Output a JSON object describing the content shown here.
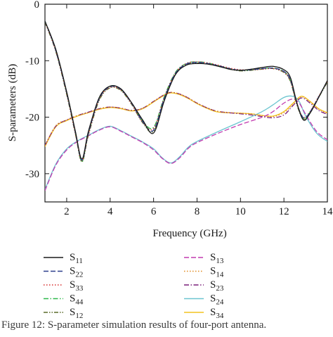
{
  "chart_data": {
    "type": "line",
    "title": "",
    "xlabel": "Frequency (GHz)",
    "ylabel": "S-parameters (dB)",
    "xlim": [
      1,
      14
    ],
    "ylim": [
      -35,
      0
    ],
    "xticks": [
      2,
      4,
      6,
      8,
      10,
      12,
      14
    ],
    "yticks": [
      0,
      -10,
      -20,
      -30
    ],
    "grid": false,
    "legend_placement": "bottom",
    "series": [
      {
        "name": "S11",
        "base": "S",
        "sub": "11",
        "color": "#1a1a1a",
        "dash": "solid",
        "x": [
          1,
          1.5,
          2,
          2.4,
          2.7,
          3,
          3.5,
          4,
          4.5,
          5,
          5.5,
          6,
          6.5,
          7,
          7.5,
          8,
          8.5,
          9,
          9.5,
          10,
          10.5,
          11,
          11.5,
          12,
          12.3,
          12.6,
          12.9,
          13.2,
          13.6,
          14
        ],
        "y": [
          -3,
          -8,
          -15.5,
          -22.5,
          -27.4,
          -22.5,
          -16.5,
          -14.5,
          -15,
          -17.5,
          -20.5,
          -22.8,
          -17,
          -12.5,
          -10.8,
          -10.5,
          -10.6,
          -11,
          -11.5,
          -11.7,
          -11.5,
          -11.2,
          -11,
          -11.6,
          -13,
          -17.5,
          -20.5,
          -19.3,
          -16.5,
          -13.5
        ]
      },
      {
        "name": "S22",
        "base": "S",
        "sub": "22",
        "color": "#2c3e8c",
        "dash": "long",
        "x": [
          1,
          1.5,
          2,
          2.4,
          2.7,
          3,
          3.5,
          4,
          4.5,
          5,
          5.5,
          6,
          6.5,
          7,
          7.5,
          8,
          8.5,
          9,
          9.5,
          10,
          10.5,
          11,
          11.5,
          12,
          12.3,
          12.6,
          12.9,
          13.2,
          13.6,
          14
        ],
        "y": [
          -3,
          -8.2,
          -15.7,
          -22.7,
          -27.6,
          -22.8,
          -16.7,
          -14.6,
          -15.1,
          -17.6,
          -20.8,
          -22.3,
          -16.6,
          -12.3,
          -10.6,
          -10.3,
          -10.5,
          -10.9,
          -11.4,
          -11.7,
          -11.6,
          -11.4,
          -11.3,
          -11.9,
          -13.4,
          -17.6,
          -20.1,
          -19.1,
          -16.4,
          -13.6
        ]
      },
      {
        "name": "S33",
        "base": "S",
        "sub": "33",
        "color": "#d62b2b",
        "dash": "dot",
        "x": [
          1,
          1.5,
          2,
          2.4,
          2.7,
          3,
          3.5,
          4,
          4.5,
          5,
          5.5,
          6,
          6.5,
          7,
          7.5,
          8,
          8.5,
          9,
          9.5,
          10,
          10.5,
          11,
          11.5,
          12,
          12.3,
          12.6,
          12.9,
          13.2,
          13.6,
          14
        ],
        "y": [
          -3.1,
          -8.3,
          -15.8,
          -22.9,
          -27.7,
          -23,
          -16.8,
          -14.7,
          -15.2,
          -17.7,
          -20.9,
          -22,
          -16.4,
          -12.2,
          -10.5,
          -10.2,
          -10.4,
          -10.8,
          -11.3,
          -11.6,
          -11.6,
          -11.5,
          -11.4,
          -12,
          -13.6,
          -17.8,
          -20,
          -19,
          -16.3,
          -13.7
        ]
      },
      {
        "name": "S44",
        "base": "S",
        "sub": "44",
        "color": "#2db84a",
        "dash": "dashdot",
        "x": [
          1,
          1.5,
          2,
          2.4,
          2.7,
          3,
          3.5,
          4,
          4.5,
          5,
          5.5,
          6,
          6.5,
          7,
          7.5,
          8,
          8.5,
          9,
          9.5,
          10,
          10.5,
          11,
          11.5,
          12,
          12.3,
          12.6,
          12.9,
          13.2,
          13.6,
          14
        ],
        "y": [
          -3,
          -8.1,
          -15.6,
          -22.6,
          -27.8,
          -22.7,
          -16.6,
          -14.5,
          -15.1,
          -17.6,
          -20.7,
          -21.8,
          -16.3,
          -12.1,
          -10.5,
          -10.2,
          -10.4,
          -10.9,
          -11.4,
          -11.7,
          -11.6,
          -11.4,
          -11.3,
          -11.9,
          -13.5,
          -17.7,
          -20.2,
          -19.1,
          -16.4,
          -13.6
        ]
      },
      {
        "name": "S12",
        "base": "S",
        "sub": "12",
        "color": "#5c6b2a",
        "dash": "dashdotdot",
        "x": [
          1,
          1.5,
          2,
          2.4,
          2.7,
          3,
          3.5,
          4,
          4.5,
          5,
          5.5,
          6,
          6.5,
          7,
          7.5,
          8,
          8.5,
          9,
          9.5,
          10,
          10.5,
          11,
          11.5,
          12,
          12.3,
          12.6,
          12.9,
          13.2,
          13.6,
          14
        ],
        "y": [
          -3.2,
          -8.4,
          -16,
          -23,
          -27.9,
          -23.2,
          -17,
          -14.8,
          -15.3,
          -17.8,
          -21,
          -22.5,
          -16.8,
          -12.4,
          -10.7,
          -10.4,
          -10.6,
          -11,
          -11.5,
          -11.8,
          -11.7,
          -11.5,
          -11.4,
          -12.1,
          -13.7,
          -17.9,
          -20.3,
          -19.2,
          -16.5,
          -13.8
        ]
      },
      {
        "name": "S13",
        "base": "S",
        "sub": "13",
        "color": "#c23bb0",
        "dash": "long",
        "x": [
          1,
          1.5,
          2,
          2.5,
          3,
          3.5,
          4,
          4.5,
          5,
          5.5,
          6,
          6.4,
          6.8,
          7.2,
          7.6,
          8,
          9,
          10,
          11,
          11.5,
          12,
          12.4,
          12.7,
          13,
          13.5,
          14
        ],
        "y": [
          -33,
          -28.5,
          -25.8,
          -24.3,
          -23.3,
          -22.3,
          -21.7,
          -22.5,
          -23.5,
          -24.5,
          -25.8,
          -27.3,
          -28.2,
          -27.2,
          -25.5,
          -24.5,
          -22.8,
          -21.3,
          -20,
          -19,
          -17.5,
          -16.8,
          -17.5,
          -19.5,
          -22.5,
          -24
        ]
      },
      {
        "name": "S14",
        "base": "S",
        "sub": "14",
        "color": "#e08a1e",
        "dash": "dot",
        "x": [
          1,
          1.5,
          2,
          2.5,
          3,
          3.5,
          4,
          4.5,
          5,
          5.5,
          6,
          6.5,
          6.8,
          7.2,
          7.6,
          8,
          8.5,
          9,
          10,
          10.5,
          11,
          11.5,
          12,
          12.4,
          12.8,
          13.2,
          13.6,
          14
        ],
        "y": [
          -25,
          -21.5,
          -20.5,
          -19.7,
          -19.2,
          -18.5,
          -18.2,
          -18.4,
          -18.8,
          -18.4,
          -17.2,
          -16,
          -15.6,
          -15.9,
          -16.6,
          -17.5,
          -18.4,
          -19,
          -19.3,
          -19.4,
          -19.7,
          -19.9,
          -19.2,
          -17.8,
          -16.4,
          -17.3,
          -18.6,
          -19.3
        ]
      },
      {
        "name": "S23",
        "base": "S",
        "sub": "23",
        "color": "#7a1f7a",
        "dash": "dashdot",
        "x": [
          1,
          1.5,
          2,
          2.5,
          3,
          3.5,
          4,
          4.5,
          5,
          5.5,
          6,
          6.5,
          6.8,
          7.2,
          7.6,
          8,
          8.5,
          9,
          10,
          10.5,
          11,
          11.5,
          12,
          12.4,
          12.8,
          13.2,
          13.6,
          14
        ],
        "y": [
          -25,
          -21.6,
          -20.5,
          -19.7,
          -19.1,
          -18.5,
          -18.2,
          -18.4,
          -18.8,
          -18.4,
          -17.2,
          -16,
          -15.6,
          -15.9,
          -16.6,
          -17.5,
          -18.4,
          -19,
          -19.4,
          -19.6,
          -19.9,
          -20.1,
          -19.6,
          -18,
          -16.6,
          -17.5,
          -18.8,
          -19.5
        ]
      },
      {
        "name": "S24",
        "base": "S",
        "sub": "24",
        "color": "#6cc5d0",
        "dash": "solid",
        "x": [
          1,
          1.5,
          2,
          2.5,
          3,
          3.5,
          4,
          4.5,
          5,
          5.5,
          6,
          6.4,
          6.8,
          7.2,
          7.6,
          8,
          9,
          10,
          11,
          11.5,
          12,
          12.4,
          12.7,
          13,
          13.5,
          14
        ],
        "y": [
          -32.8,
          -28.3,
          -25.6,
          -24.2,
          -23.2,
          -22.2,
          -21.6,
          -22.4,
          -23.4,
          -24.4,
          -25.6,
          -27.2,
          -28.1,
          -27,
          -25.3,
          -24.3,
          -22.5,
          -20.8,
          -19,
          -17.8,
          -16.5,
          -16.3,
          -17.2,
          -19.8,
          -22.8,
          -24.3
        ]
      },
      {
        "name": "S34",
        "base": "S",
        "sub": "34",
        "color": "#f2c320",
        "dash": "solid",
        "x": [
          1,
          1.5,
          2,
          2.5,
          3,
          3.5,
          4,
          4.5,
          5,
          5.5,
          6,
          6.5,
          6.8,
          7.2,
          7.6,
          8,
          8.5,
          9,
          10,
          10.5,
          11,
          11.5,
          12,
          12.4,
          12.8,
          13.2,
          13.6,
          14
        ],
        "y": [
          -25.2,
          -21.7,
          -20.6,
          -19.8,
          -19.2,
          -18.6,
          -18.3,
          -18.5,
          -18.9,
          -18.5,
          -17.3,
          -16.1,
          -15.7,
          -16,
          -16.7,
          -17.6,
          -18.5,
          -19.1,
          -19.3,
          -19.4,
          -19.7,
          -19.8,
          -19,
          -17.6,
          -16.3,
          -17.2,
          -18.5,
          -19.2
        ]
      }
    ]
  },
  "caption": "Figure 12: S-parameter simulation results of four-port antenna."
}
